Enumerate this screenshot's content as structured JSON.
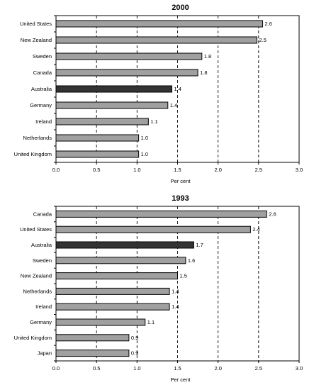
{
  "chart_data": [
    {
      "type": "bar",
      "orientation": "horizontal",
      "title": "2000",
      "xlabel": "Per cent",
      "ylabel": "",
      "xlim": [
        0,
        3.0
      ],
      "x_ticks": [
        "0.0",
        "0.5",
        "1.0",
        "1.5",
        "2.0",
        "2.5",
        "3.0"
      ],
      "gridlines": "dashed vertical at each tick",
      "categories": [
        "United States",
        "New Zealand",
        "Sweden",
        "Canada",
        "Australia",
        "Germany",
        "Ireland",
        "Netherlands",
        "United Kingdom"
      ],
      "values": [
        2.55,
        2.48,
        1.8,
        1.75,
        1.43,
        1.38,
        1.14,
        1.02,
        1.02
      ],
      "value_labels": [
        "2.6",
        "2.5",
        "1.8",
        "1.8",
        "1.4",
        "1.4",
        "1.1",
        "1.0",
        "1.0"
      ],
      "highlight": "Australia",
      "colors": {
        "bar": "#a0a0a0",
        "highlight": "#333333",
        "outline": "#000000"
      }
    },
    {
      "type": "bar",
      "orientation": "horizontal",
      "title": "1993",
      "xlabel": "Per cent",
      "ylabel": "",
      "xlim": [
        0,
        3.0
      ],
      "x_ticks": [
        "0.0",
        "0.5",
        "1.0",
        "1.5",
        "2.0",
        "2.5",
        "3.0"
      ],
      "gridlines": "dashed vertical at each tick",
      "categories": [
        "Canada",
        "United States",
        "Australia",
        "Sweden",
        "New Zealand",
        "Netherlands",
        "Ireland",
        "Germany",
        "United Kingdom",
        "Japan"
      ],
      "values": [
        2.6,
        2.4,
        1.7,
        1.6,
        1.5,
        1.4,
        1.4,
        1.1,
        0.9,
        0.9
      ],
      "value_labels": [
        "2.6",
        "2.4",
        "1.7",
        "1.6",
        "1.5",
        "1.4",
        "1.4",
        "1.1",
        "0.9",
        "0.9"
      ],
      "highlight": "Australia",
      "colors": {
        "bar": "#a0a0a0",
        "highlight": "#333333",
        "outline": "#000000"
      }
    }
  ]
}
